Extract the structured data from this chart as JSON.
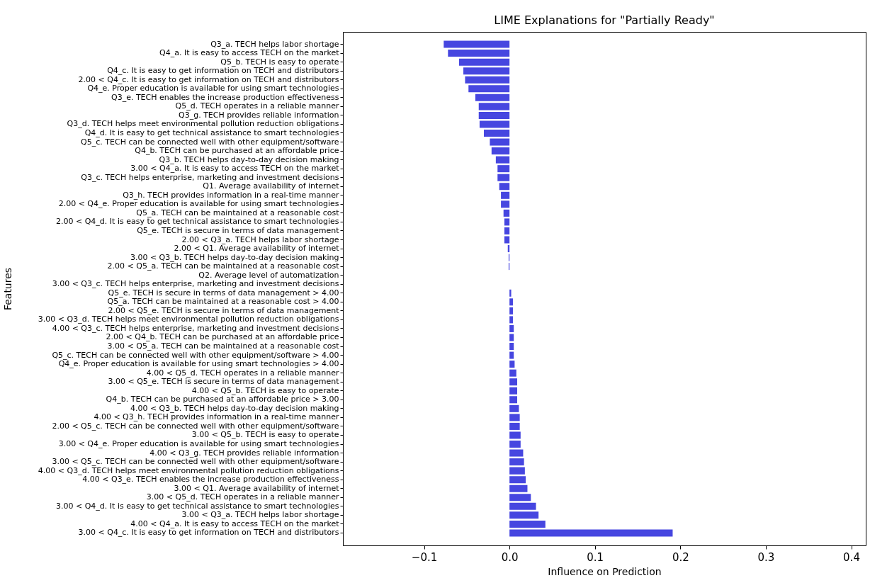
{
  "chart_data": {
    "type": "bar",
    "orientation": "horizontal",
    "title": "LIME Explanations for \"Partially Ready\"",
    "xlabel": "Influence on Prediction",
    "ylabel": "Features",
    "categories": [
      "Q3_a. TECH helps labor shortage",
      "Q4_a. It is easy to access TECH on the market",
      "Q5_b. TECH is easy to operate",
      "Q4_c. It is easy to get information on TECH and distributors",
      "2.00 < Q4_c. It is easy to get information on TECH and distributors",
      "Q4_e. Proper education is available for using smart technologies",
      "Q3_e. TECH enables the increase production effectiveness",
      "Q5_d. TECH operates in a reliable manner",
      "Q3_g. TECH provides reliable information",
      "Q3_d. TECH helps meet environmental pollution reduction obligations",
      "Q4_d. It is easy to get technical assistance to smart technologies",
      "Q5_c. TECH can be connected well with other equipment/software",
      "Q4_b. TECH can be purchased at an affordable price",
      "Q3_b. TECH helps day-to-day decision making",
      "3.00 < Q4_a. It is easy to access TECH on the market",
      "Q3_c. TECH helps enterprise, marketing and investment decisions",
      "Q1. Average availability of internet",
      "Q3_h. TECH provides information in a real-time manner",
      "2.00 < Q4_e. Proper education is available for using smart technologies",
      "Q5_a. TECH can be maintained at a reasonable cost",
      "2.00 < Q4_d. It is easy to get technical assistance to smart technologies",
      "Q5_e. TECH is secure in terms of data management",
      "2.00 < Q3_a. TECH helps labor shortage",
      "2.00 < Q1. Average availability of internet",
      "3.00 < Q3_b. TECH helps day-to-day decision making",
      "2.00 < Q5_a. TECH can be maintained at a reasonable cost",
      "Q2. Average level of automatization",
      "3.00 < Q3_c. TECH helps enterprise, marketing and investment decisions",
      "Q5_e. TECH is secure in terms of data management > 4.00",
      "Q5_a. TECH can be maintained at a reasonable cost > 4.00",
      "2.00 < Q5_e. TECH is secure in terms of data management",
      "3.00 < Q3_d. TECH helps meet environmental pollution reduction obligations",
      "4.00 < Q3_c. TECH helps enterprise, marketing and investment decisions",
      "2.00 < Q4_b. TECH can be purchased at an affordable price",
      "3.00 < Q5_a. TECH can be maintained at a reasonable cost",
      "Q5_c. TECH can be connected well with other equipment/software > 4.00",
      "Q4_e. Proper education is available for using smart technologies > 4.00",
      "4.00 < Q5_d. TECH operates in a reliable manner",
      "3.00 < Q5_e. TECH is secure in terms of data management",
      "4.00 < Q5_b. TECH is easy to operate",
      "Q4_b. TECH can be purchased at an affordable price > 3.00",
      "4.00 < Q3_b. TECH helps day-to-day decision making",
      "4.00 < Q3_h. TECH provides information in a real-time manner",
      "2.00 < Q5_c. TECH can be connected well with other equipment/software",
      "3.00 < Q5_b. TECH is easy to operate",
      "3.00 < Q4_e. Proper education is available for using smart technologies",
      "4.00 < Q3_g. TECH provides reliable information",
      "3.00 < Q5_c. TECH can be connected well with other equipment/software",
      "4.00 < Q3_d. TECH helps meet environmental pollution reduction obligations",
      "4.00 < Q3_e. TECH enables the increase production effectiveness",
      "3.00 < Q1. Average availability of internet",
      "3.00 < Q5_d. TECH operates in a reliable manner",
      "3.00 < Q4_d. It is easy to get technical assistance to smart technologies",
      "3.00 < Q3_a. TECH helps labor shortage",
      "4.00 < Q4_a. It is easy to access TECH on the market",
      "3.00 < Q4_c. It is easy to get information on TECH and distributors"
    ],
    "values": [
      -0.077,
      -0.072,
      -0.059,
      -0.054,
      -0.052,
      -0.048,
      -0.04,
      -0.036,
      -0.036,
      -0.035,
      -0.03,
      -0.023,
      -0.021,
      -0.016,
      -0.014,
      -0.014,
      -0.012,
      -0.01,
      -0.01,
      -0.007,
      -0.006,
      -0.006,
      -0.006,
      -0.002,
      -0.001,
      -0.001,
      0,
      0,
      0.002,
      0.004,
      0.004,
      0.004,
      0.005,
      0.005,
      0.005,
      0.005,
      0.006,
      0.008,
      0.009,
      0.009,
      0.009,
      0.011,
      0.012,
      0.012,
      0.013,
      0.013,
      0.016,
      0.017,
      0.018,
      0.019,
      0.021,
      0.025,
      0.031,
      0.034,
      0.042,
      0.191
    ],
    "color": "#4646e0",
    "xlim": [
      -0.195,
      0.417
    ],
    "xticks": [
      {
        "value": -0.1,
        "label": "−0.1"
      },
      {
        "value": 0,
        "label": "0.0"
      },
      0.1,
      0.2,
      0.3,
      0.4
    ]
  }
}
